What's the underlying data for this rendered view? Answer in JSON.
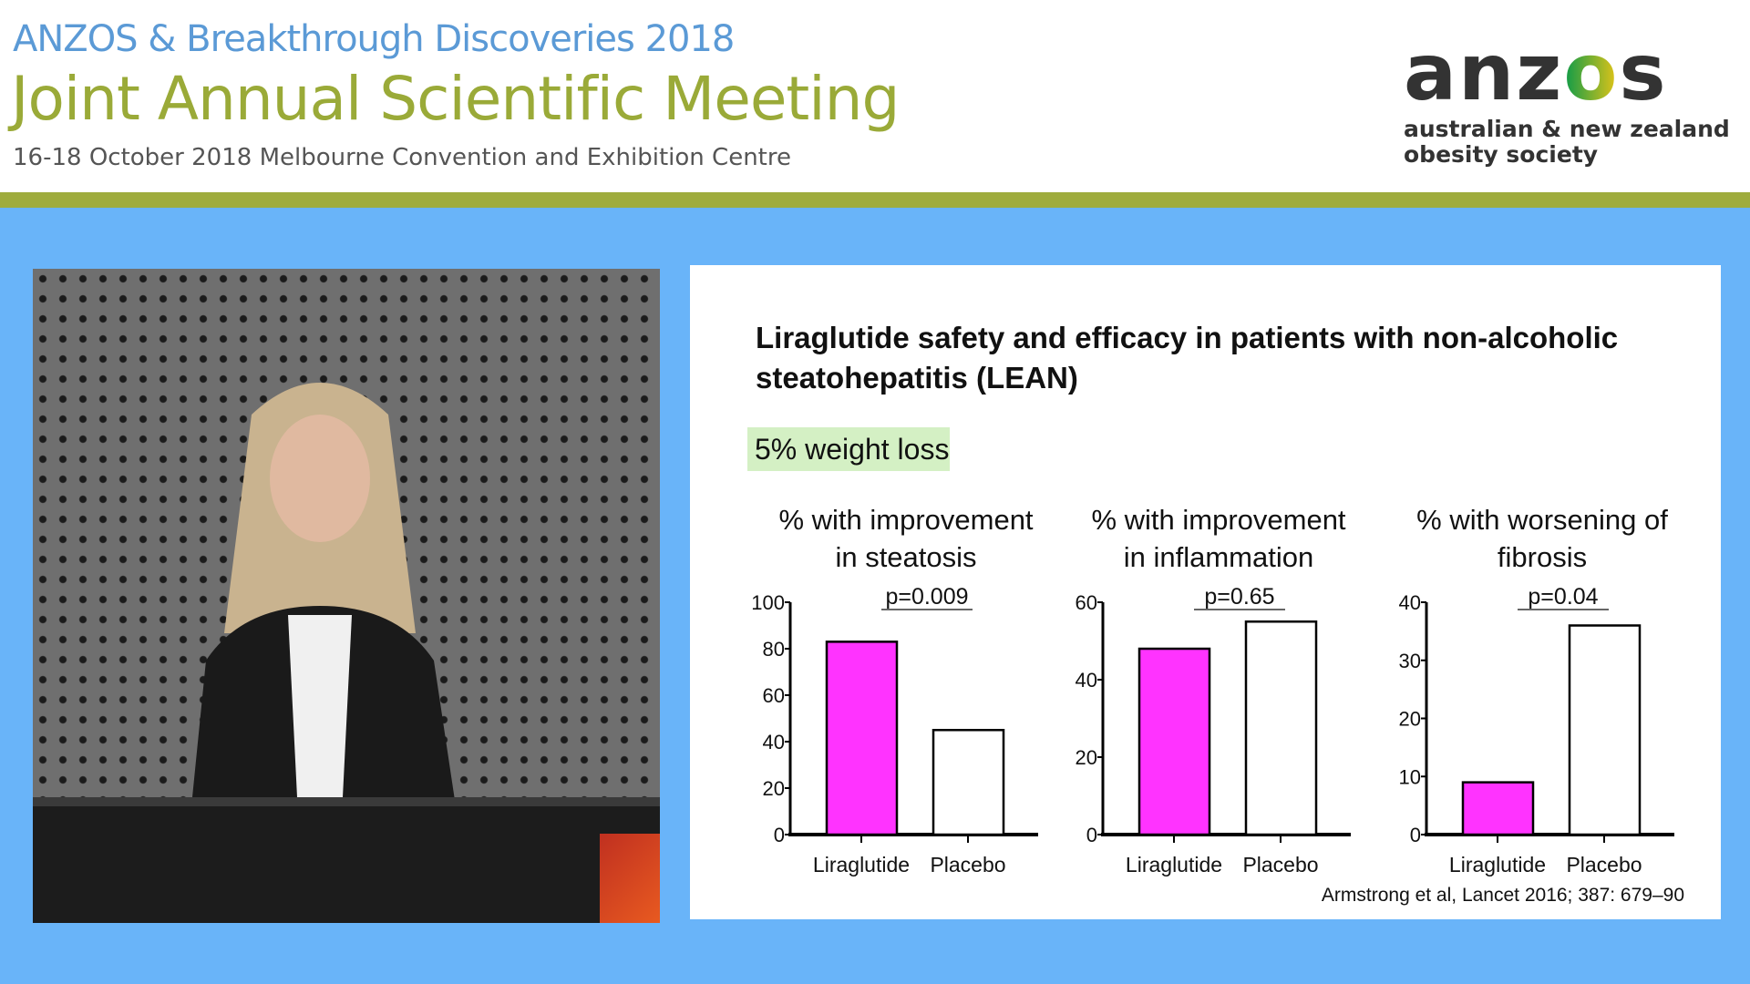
{
  "header": {
    "event": "ANZOS & Breakthrough Discoveries 2018",
    "title": "Joint Annual Scientific Meeting",
    "subtitle": "16-18 October 2018 Melbourne Convention and Exhibition Centre",
    "logo": {
      "word": "anzos",
      "line1": "australian & new zealand",
      "line2": "obesity society"
    }
  },
  "colors": {
    "header_band": "#9fac3d",
    "background": "#69b4f9",
    "liraglutide_bar": "#ff33ff",
    "placebo_bar": "#ffffff"
  },
  "slide": {
    "title": "Liraglutide safety and efficacy in patients with non-alcoholic steatohepatitis (LEAN)",
    "badge": "5% weight loss",
    "citation": "Armstrong et al, Lancet 2016; 387: 679–90"
  },
  "chart_data": [
    {
      "type": "bar",
      "title": [
        "% with improvement",
        "in steatosis"
      ],
      "categories": [
        "Liraglutide",
        "Placebo"
      ],
      "values": [
        83,
        45
      ],
      "p_value": "p=0.009",
      "ylim": [
        0,
        100
      ],
      "yticks": [
        0,
        20,
        40,
        60,
        80,
        100
      ],
      "grid": false
    },
    {
      "type": "bar",
      "title": [
        "% with improvement",
        "in inflammation"
      ],
      "categories": [
        "Liraglutide",
        "Placebo"
      ],
      "values": [
        48,
        55
      ],
      "p_value": "p=0.65",
      "ylim": [
        0,
        60
      ],
      "yticks": [
        0,
        20,
        40,
        60
      ],
      "grid": false
    },
    {
      "type": "bar",
      "title": [
        "% with worsening of",
        "fibrosis"
      ],
      "categories": [
        "Liraglutide",
        "Placebo"
      ],
      "values": [
        9,
        36
      ],
      "p_value": "p=0.04",
      "ylim": [
        0,
        40
      ],
      "yticks": [
        0,
        10,
        20,
        30,
        40
      ],
      "grid": false
    }
  ]
}
